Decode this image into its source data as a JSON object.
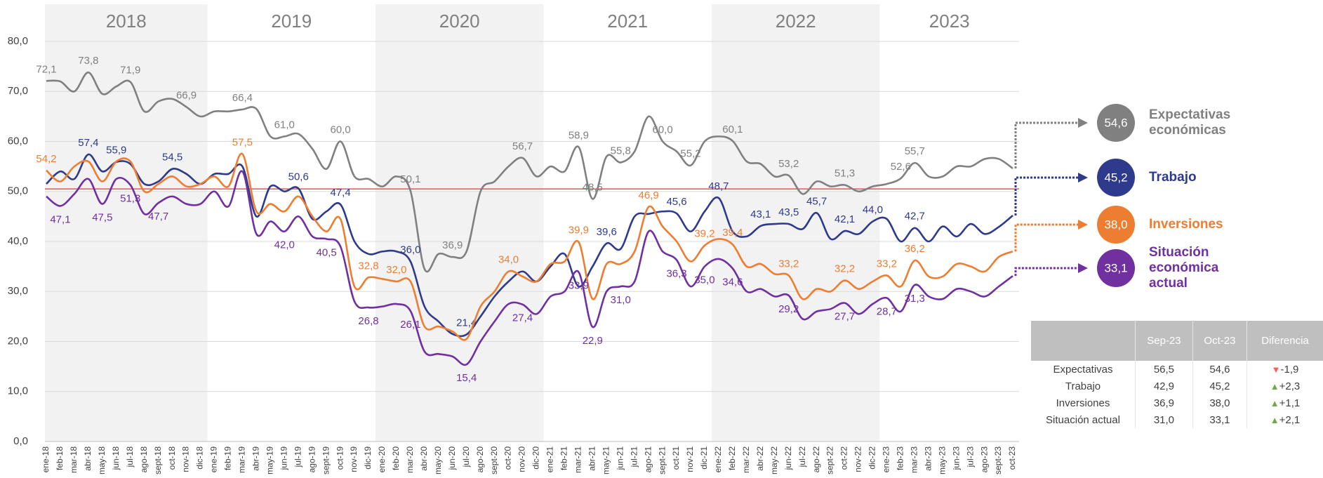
{
  "chart_data": {
    "type": "line",
    "categories": [
      "ene-18",
      "feb-18",
      "mar-18",
      "abr-18",
      "may-18",
      "jun-18",
      "jul-18",
      "ago-18",
      "sept-18",
      "oct-18",
      "nov-18",
      "dic-18",
      "ene-19",
      "feb-19",
      "mar-19",
      "abr-19",
      "may-19",
      "jun-19",
      "jul-19",
      "ago-19",
      "sept-19",
      "oct-19",
      "nov-19",
      "dic-19",
      "ene-20",
      "feb-20",
      "mar-20",
      "abr-20",
      "may-20",
      "jun-20",
      "jul-20",
      "ago-20",
      "sept-20",
      "oct-20",
      "nov-20",
      "dic-20",
      "ene-21",
      "feb-21",
      "mar-21",
      "abr-21",
      "may-21",
      "jun-21",
      "jul-21",
      "ago-21",
      "sept-21",
      "oct-21",
      "nov-21",
      "dic-21",
      "ene-22",
      "feb-22",
      "mar-22",
      "abr-22",
      "may-22",
      "jun-22",
      "jul-22",
      "ago-22",
      "sept-22",
      "oct-22",
      "nov-22",
      "dic-22",
      "ene-23",
      "feb-23",
      "mar-23",
      "abr-23",
      "may-23",
      "jun-23",
      "jul-23",
      "ago-23",
      "sept-23",
      "oct-23"
    ],
    "years": [
      {
        "label": "2018",
        "shaded": true
      },
      {
        "label": "2019",
        "shaded": false
      },
      {
        "label": "2020",
        "shaded": true
      },
      {
        "label": "2021",
        "shaded": false
      },
      {
        "label": "2022",
        "shaded": true
      },
      {
        "label": "2023",
        "shaded": false
      }
    ],
    "series": [
      {
        "name": "Expectativas económicas",
        "color": "#808080",
        "label_position": "above",
        "values": [
          72.1,
          72,
          70,
          73.8,
          69.5,
          71,
          71.9,
          66,
          68,
          68.5,
          66.9,
          65,
          66,
          66,
          66.4,
          66.5,
          61,
          61,
          61.5,
          58.5,
          54.5,
          60,
          53,
          52.5,
          51,
          53,
          50.1,
          34.5,
          37.5,
          36.9,
          38,
          50,
          52,
          55,
          56.7,
          53,
          55,
          54,
          58.9,
          48.5,
          57,
          55.8,
          58,
          65,
          60,
          58,
          55.2,
          60,
          61,
          60.1,
          56,
          55.5,
          53,
          53.2,
          49.5,
          52,
          51,
          51.3,
          50,
          51,
          51.5,
          52.6,
          55.7,
          53,
          53,
          55,
          55,
          56.5,
          56.5,
          54.6
        ],
        "value_labels": [
          "72,1",
          null,
          null,
          "73,8",
          null,
          null,
          "71,9",
          null,
          null,
          null,
          "66,9",
          null,
          null,
          null,
          "66,4",
          null,
          null,
          "61,0",
          null,
          null,
          null,
          "60,0",
          null,
          null,
          null,
          null,
          "50,1",
          null,
          null,
          "36,9",
          null,
          null,
          null,
          null,
          "56,7",
          null,
          null,
          null,
          "58,9",
          "48,5",
          null,
          "55,8",
          null,
          null,
          "60,0",
          null,
          "55,2",
          null,
          null,
          "60,1",
          null,
          null,
          null,
          "53,2",
          null,
          null,
          null,
          "51,3",
          null,
          null,
          null,
          "52,6",
          "55,7",
          null,
          null,
          null,
          null,
          null,
          null,
          "54,6"
        ]
      },
      {
        "name": "Trabajo",
        "color": "#2e3a8c",
        "label_position": "above",
        "values": [
          51.5,
          54,
          52.5,
          57.4,
          54,
          55.9,
          55.5,
          51.5,
          52,
          54.5,
          53.5,
          51.5,
          53.5,
          53.5,
          55,
          45,
          51,
          50,
          50.6,
          44.5,
          46,
          47.4,
          40,
          37.5,
          38,
          38,
          36,
          27,
          24,
          21.5,
          21.4,
          25,
          29,
          32,
          34,
          32,
          35,
          37.5,
          31,
          35,
          39.6,
          38.5,
          45,
          45.5,
          46,
          45.6,
          42,
          46,
          48.7,
          42,
          41,
          43.1,
          43.5,
          43.5,
          42.5,
          45.7,
          40.5,
          42.1,
          41.5,
          44,
          44.5,
          40,
          42.7,
          40,
          43,
          41,
          43.5,
          41.5,
          42.9,
          45.2
        ],
        "value_labels": [
          null,
          null,
          null,
          "57,4",
          null,
          "55,9",
          null,
          null,
          null,
          "54,5",
          null,
          null,
          null,
          null,
          null,
          null,
          null,
          null,
          "50,6",
          null,
          null,
          "47,4",
          null,
          null,
          null,
          null,
          "36,0",
          null,
          null,
          null,
          "21,4",
          null,
          null,
          null,
          null,
          null,
          null,
          null,
          null,
          null,
          "39,6",
          null,
          null,
          null,
          null,
          "45,6",
          null,
          null,
          "48,7",
          null,
          null,
          "43,1",
          null,
          "43,5",
          null,
          "45,7",
          null,
          "42,1",
          null,
          "44,0",
          null,
          null,
          "42,7",
          null,
          null,
          null,
          null,
          null,
          null,
          "45,2"
        ]
      },
      {
        "name": "Inversiones",
        "color": "#ed7d31",
        "label_position": "above",
        "values": [
          54.2,
          52,
          55,
          56,
          52,
          56,
          56,
          50,
          51.5,
          53,
          51,
          51.5,
          53,
          51,
          57.5,
          46,
          47.5,
          46,
          49,
          45,
          42,
          44.5,
          31,
          32.8,
          32.5,
          32,
          32,
          23,
          23,
          22,
          20.5,
          27,
          30,
          34,
          33,
          32,
          35.5,
          36,
          39.9,
          28.5,
          35.5,
          35.5,
          38,
          46.9,
          43,
          40,
          36,
          39.2,
          40.5,
          39.4,
          35,
          35.5,
          33.5,
          33.2,
          28.5,
          30.5,
          30,
          32.2,
          30.5,
          32,
          33.2,
          31,
          36.2,
          33,
          33,
          35.5,
          35,
          34,
          36.9,
          38
        ],
        "value_labels": [
          "54,2",
          null,
          null,
          null,
          null,
          null,
          null,
          null,
          null,
          null,
          null,
          null,
          null,
          null,
          "57,5",
          null,
          null,
          null,
          null,
          null,
          null,
          null,
          null,
          "32,8",
          null,
          "32,0",
          null,
          null,
          null,
          null,
          null,
          null,
          null,
          "34,0",
          null,
          null,
          null,
          null,
          "39,9",
          null,
          null,
          null,
          null,
          "46,9",
          null,
          null,
          null,
          "39,2",
          null,
          "39,4",
          null,
          null,
          null,
          "33,2",
          null,
          null,
          null,
          "32,2",
          null,
          null,
          "33,2",
          null,
          "36,2",
          null,
          null,
          null,
          null,
          null,
          null,
          "38,0"
        ]
      },
      {
        "name": "Situación económica actual",
        "color": "#7030a0",
        "label_position": "below",
        "values": [
          49,
          47.1,
          49.5,
          52.5,
          47.5,
          52.5,
          51.3,
          45.5,
          47.7,
          49,
          47.5,
          47.5,
          50,
          47,
          54,
          41.5,
          44,
          42,
          45,
          41,
          40.5,
          39,
          28,
          26.8,
          27,
          27.5,
          26.1,
          18,
          17.5,
          17,
          15.4,
          20,
          24,
          27.5,
          27.4,
          25.5,
          29,
          30,
          33.9,
          22.9,
          30,
          31,
          32,
          42,
          38,
          36.3,
          31,
          35,
          36.5,
          34.6,
          30,
          30.5,
          29,
          29.2,
          24.5,
          26,
          26.5,
          27.7,
          25.5,
          27.5,
          28.7,
          26,
          31.3,
          29,
          28.5,
          30.5,
          30,
          29,
          31,
          33.1
        ],
        "value_labels": [
          null,
          "47,1",
          null,
          null,
          "47,5",
          null,
          "51,3",
          null,
          "47,7",
          null,
          null,
          null,
          null,
          null,
          null,
          null,
          null,
          "42,0",
          null,
          null,
          "40,5",
          null,
          null,
          "26,8",
          null,
          null,
          "26,1",
          null,
          null,
          null,
          "15,4",
          null,
          null,
          null,
          "27,4",
          null,
          null,
          null,
          "33,9",
          "22,9",
          null,
          "31,0",
          null,
          null,
          null,
          "36,3",
          null,
          "35,0",
          null,
          "34,6",
          null,
          null,
          null,
          "29,2",
          null,
          null,
          null,
          "27,7",
          null,
          null,
          "28,7",
          null,
          "31,3",
          null,
          null,
          null,
          null,
          null,
          null,
          "33,1"
        ]
      }
    ],
    "reference_line": {
      "value": 50.5,
      "color": "#e06666"
    },
    "ylim": [
      0,
      80
    ],
    "yticks": [
      {
        "value": 0,
        "label": "0,0"
      },
      {
        "value": 10,
        "label": "10,0"
      },
      {
        "value": 20,
        "label": "20,0"
      },
      {
        "value": 30,
        "label": "30,0"
      },
      {
        "value": 40,
        "label": "40,0"
      },
      {
        "value": 50,
        "label": "50,0"
      },
      {
        "value": 60,
        "label": "60,0"
      },
      {
        "value": 70,
        "label": "70,0"
      },
      {
        "value": 80,
        "label": "80,0"
      }
    ],
    "grid": true
  },
  "summary_table": {
    "columns": [
      "Sep-23",
      "Oct-23",
      "Diferencia"
    ],
    "rows": [
      {
        "label": "Expectativas",
        "cells": [
          "56,5",
          "54,6"
        ],
        "diff": "-1,9",
        "trend": "down"
      },
      {
        "label": "Trabajo",
        "cells": [
          "42,9",
          "45,2"
        ],
        "diff": "+2,3",
        "trend": "up"
      },
      {
        "label": "Inversiones",
        "cells": [
          "36,9",
          "38,0"
        ],
        "diff": "+1,1",
        "trend": "up"
      },
      {
        "label": "Situación actual",
        "cells": [
          "31,0",
          "33,1"
        ],
        "diff": "+2,1",
        "trend": "up"
      }
    ]
  }
}
